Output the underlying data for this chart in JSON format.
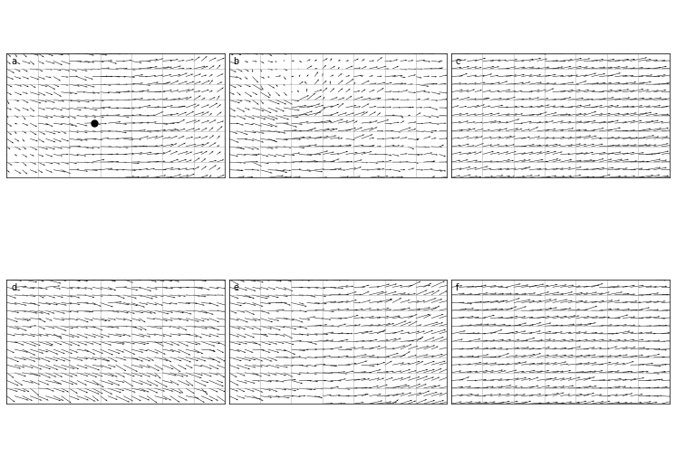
{
  "panels": [
    "a",
    "b",
    "c",
    "d",
    "e",
    "f"
  ],
  "lon_min": -30,
  "lon_max": 40,
  "lat_min": 30,
  "lat_max": 70,
  "grid_lons": [
    -30,
    -20,
    -10,
    0,
    10,
    20,
    30,
    40
  ],
  "grid_lats": [
    30,
    35,
    40,
    45,
    50,
    55,
    60,
    65,
    70
  ],
  "background_color": "#ffffff",
  "land_color": "#ffffff",
  "border_color": "#000000",
  "vector_color": "#000000",
  "grid_color": "#aaaaaa",
  "label_fontsize": 7,
  "marker_lon": -2.0,
  "marker_lat": 47.5,
  "marker_panel": 0,
  "wind_seed_a": 42,
  "wind_seed_b": 123,
  "wind_seed_c": 456,
  "wind_seed_d": 789,
  "wind_seed_e": 321,
  "wind_seed_f": 654
}
